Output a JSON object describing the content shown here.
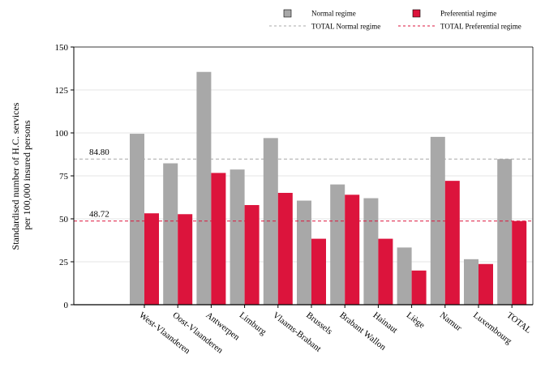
{
  "colors": {
    "normal": "#a8a8a8",
    "preferential": "#dc143c",
    "normal_ref": "#a8a8a8",
    "preferential_ref": "#dc143c",
    "grid": "#e6e6e6",
    "axis": "#000000"
  },
  "legend": {
    "normal_label": "Normal regime",
    "preferential_label": "Preferential regime",
    "normal_total_label": "TOTAL Normal regime",
    "preferential_total_label": "TOTAL Preferential regime"
  },
  "chart_data": {
    "type": "bar",
    "title": "",
    "xlabel": "",
    "ylabel": "Standardised number of H.C. services\nper 100,000 insured persons",
    "ylabel_lines": [
      "Standardised number of H.C. services",
      "per 100,000 insured persons"
    ],
    "ylim": [
      0,
      150
    ],
    "yticks": [
      0,
      25,
      50,
      75,
      100,
      125,
      150
    ],
    "grid": true,
    "legend_position": "top",
    "categories": [
      "West-Vlaanderen",
      "Oost-Vlaanderen",
      "Antwerpen",
      "Limburg",
      "Vlaams-Brabant",
      "Brussels",
      "Brabant Wallon",
      "Hainaut",
      "Liège",
      "Namur",
      "Luxembourg",
      "TOTAL"
    ],
    "series": [
      {
        "name": "Normal regime",
        "values": [
          99.5,
          82.3,
          135.5,
          78.7,
          97.0,
          60.6,
          70.0,
          62.0,
          33.3,
          97.7,
          26.5,
          84.8
        ]
      },
      {
        "name": "Preferential regime",
        "values": [
          53.2,
          52.7,
          76.7,
          58.0,
          65.1,
          38.4,
          64.0,
          38.4,
          19.9,
          72.1,
          23.7,
          48.72
        ]
      }
    ],
    "reference_lines": [
      {
        "name": "TOTAL Normal regime",
        "value": 84.8,
        "label": "84.80"
      },
      {
        "name": "TOTAL Preferential regime",
        "value": 48.72,
        "label": "48.72"
      }
    ]
  }
}
